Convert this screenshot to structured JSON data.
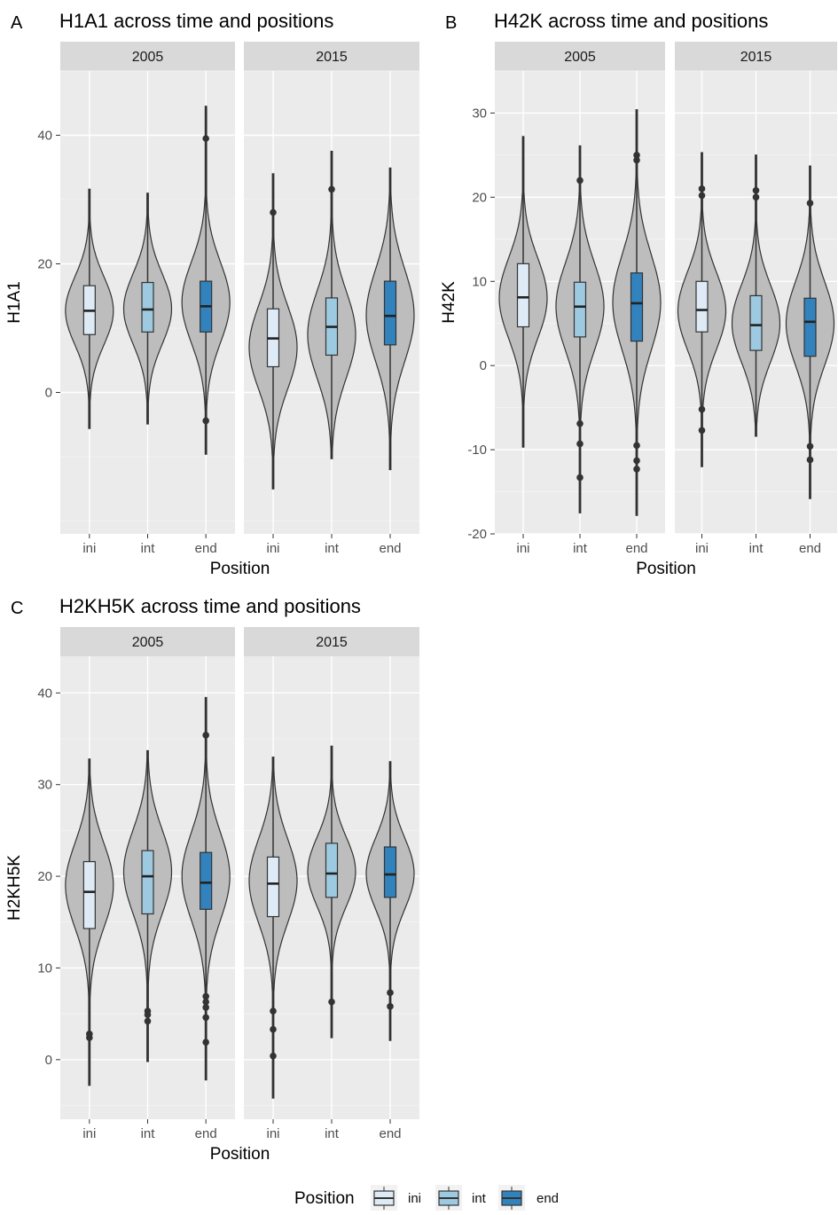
{
  "legend": {
    "title": "Position",
    "items": [
      {
        "label": "ini",
        "color": "#DEEBF7"
      },
      {
        "label": "int",
        "color": "#9ECAE1"
      },
      {
        "label": "end",
        "color": "#3182BD"
      }
    ]
  },
  "chart_data": [
    {
      "type": "violin",
      "panel_letter": "A",
      "title": "H1A1 across time and positions",
      "xlabel": "Position",
      "ylabel": "H1A1",
      "ylim": [
        -22,
        50
      ],
      "yticks": [
        0,
        20,
        40
      ],
      "facets": [
        {
          "label": "2005",
          "groups": [
            {
              "label": "ini",
              "q1": 9,
              "median": 12.7,
              "q3": 16.6,
              "whisker_low": -5.6,
              "whisker_high": 31.6,
              "vmin": -5.6,
              "vmax": 31.6,
              "mode": 12.7,
              "spread": 5.3,
              "outliers": []
            },
            {
              "label": "int",
              "q1": 9.4,
              "median": 12.9,
              "q3": 17.1,
              "whisker_low": -4.9,
              "whisker_high": 31.0,
              "vmin": -4.9,
              "vmax": 31.0,
              "mode": 13,
              "spread": 5.5,
              "outliers": []
            },
            {
              "label": "end",
              "q1": 9.4,
              "median": 13.4,
              "q3": 17.3,
              "whisker_low": -9.6,
              "whisker_high": 44.5,
              "vmin": -9.6,
              "vmax": 44.5,
              "mode": 14,
              "spread": 6.3,
              "outliers": [
                39.5,
                -4.4
              ]
            }
          ]
        },
        {
          "label": "2015",
          "groups": [
            {
              "label": "ini",
              "q1": 4.0,
              "median": 8.4,
              "q3": 13.0,
              "whisker_low": -15.0,
              "whisker_high": 34.0,
              "vmin": -15.0,
              "vmax": 34.0,
              "mode": 7,
              "spread": 6.5,
              "outliers": [
                28.0
              ]
            },
            {
              "label": "int",
              "q1": 5.8,
              "median": 10.2,
              "q3": 14.7,
              "whisker_low": -10.3,
              "whisker_high": 37.5,
              "vmin": -10.3,
              "vmax": 37.5,
              "mode": 9,
              "spread": 6.8,
              "outliers": [
                31.6
              ]
            },
            {
              "label": "end",
              "q1": 7.4,
              "median": 11.9,
              "q3": 17.3,
              "whisker_low": -12.0,
              "whisker_high": 34.9,
              "vmin": -12.0,
              "vmax": 34.9,
              "mode": 12,
              "spread": 7.2,
              "outliers": []
            }
          ]
        }
      ]
    },
    {
      "type": "violin",
      "panel_letter": "B",
      "title": "H42K across time and positions",
      "xlabel": "Position",
      "ylabel": "H42K",
      "ylim": [
        -20,
        35
      ],
      "yticks": [
        -20,
        -10,
        0,
        10,
        20,
        30
      ],
      "facets": [
        {
          "label": "2005",
          "groups": [
            {
              "label": "ini",
              "q1": 4.6,
              "median": 8.1,
              "q3": 12.1,
              "whisker_low": -9.7,
              "whisker_high": 27.2,
              "vmin": -9.7,
              "vmax": 27.2,
              "mode": 8,
              "spread": 4.8,
              "outliers": []
            },
            {
              "label": "int",
              "q1": 3.4,
              "median": 7.0,
              "q3": 9.9,
              "whisker_low": -17.5,
              "whisker_high": 26.1,
              "vmin": -17.5,
              "vmax": 26.1,
              "mode": 7,
              "spread": 5.2,
              "outliers": [
                22.0,
                -6.9,
                -9.3,
                -13.3
              ]
            },
            {
              "label": "end",
              "q1": 2.9,
              "median": 7.4,
              "q3": 11.0,
              "whisker_low": -17.8,
              "whisker_high": 30.4,
              "vmin": -17.8,
              "vmax": 30.4,
              "mode": 7.5,
              "spread": 5.7,
              "outliers": [
                25.0,
                24.4,
                -9.5,
                -11.3,
                -12.3
              ]
            }
          ]
        },
        {
          "label": "2015",
          "groups": [
            {
              "label": "ini",
              "q1": 4.0,
              "median": 6.6,
              "q3": 10.0,
              "whisker_low": -12.0,
              "whisker_high": 25.3,
              "vmin": -12.0,
              "vmax": 25.3,
              "mode": 6.5,
              "spread": 4.6,
              "outliers": [
                21.0,
                20.2,
                -5.2,
                -7.7
              ]
            },
            {
              "label": "int",
              "q1": 1.8,
              "median": 4.8,
              "q3": 8.3,
              "whisker_low": -8.4,
              "whisker_high": 25.0,
              "vmin": -8.4,
              "vmax": 25.0,
              "mode": 5,
              "spread": 4.6,
              "outliers": [
                20.8,
                20.0
              ]
            },
            {
              "label": "end",
              "q1": 1.1,
              "median": 5.2,
              "q3": 8.0,
              "whisker_low": -15.8,
              "whisker_high": 23.7,
              "vmin": -15.8,
              "vmax": 23.7,
              "mode": 5,
              "spread": 5.0,
              "outliers": [
                19.3,
                -9.6,
                -11.2
              ]
            }
          ]
        }
      ]
    },
    {
      "type": "violin",
      "panel_letter": "C",
      "title": "H2KH5K across time and positions",
      "xlabel": "Position",
      "ylabel": "H2KH5K",
      "ylim": [
        -6.5,
        44
      ],
      "yticks": [
        0,
        10,
        20,
        30,
        40
      ],
      "facets": [
        {
          "label": "2005",
          "groups": [
            {
              "label": "ini",
              "q1": 14.3,
              "median": 18.3,
              "q3": 21.6,
              "whisker_low": -2.8,
              "whisker_high": 32.8,
              "vmin": -2.8,
              "vmax": 32.8,
              "mode": 19,
              "spread": 4.6,
              "outliers": [
                2.8,
                2.4
              ]
            },
            {
              "label": "int",
              "q1": 15.9,
              "median": 20.0,
              "q3": 22.8,
              "whisker_low": -0.2,
              "whisker_high": 33.7,
              "vmin": -0.2,
              "vmax": 33.7,
              "mode": 20.5,
              "spread": 4.6,
              "outliers": [
                5.3,
                4.9,
                4.2
              ]
            },
            {
              "label": "end",
              "q1": 16.4,
              "median": 19.3,
              "q3": 22.6,
              "whisker_low": -2.2,
              "whisker_high": 39.5,
              "vmin": -2.2,
              "vmax": 39.5,
              "mode": 20,
              "spread": 4.8,
              "outliers": [
                35.4,
                6.9,
                6.3,
                5.7,
                4.6,
                1.9
              ]
            }
          ]
        },
        {
          "label": "2015",
          "groups": [
            {
              "label": "ini",
              "q1": 15.6,
              "median": 19.2,
              "q3": 22.1,
              "whisker_low": -4.2,
              "whisker_high": 33.0,
              "vmin": -4.2,
              "vmax": 33.0,
              "mode": 19.5,
              "spread": 4.6,
              "outliers": [
                5.3,
                3.3,
                0.4
              ]
            },
            {
              "label": "int",
              "q1": 17.7,
              "median": 20.3,
              "q3": 23.6,
              "whisker_low": 2.4,
              "whisker_high": 34.2,
              "vmin": 2.4,
              "vmax": 34.2,
              "mode": 20.5,
              "spread": 3.8,
              "outliers": [
                6.3
              ]
            },
            {
              "label": "end",
              "q1": 17.7,
              "median": 20.2,
              "q3": 23.2,
              "whisker_low": 2.1,
              "whisker_high": 32.5,
              "vmin": 2.1,
              "vmax": 32.5,
              "mode": 20.3,
              "spread": 3.9,
              "outliers": [
                7.3,
                5.8
              ]
            }
          ]
        }
      ]
    }
  ]
}
